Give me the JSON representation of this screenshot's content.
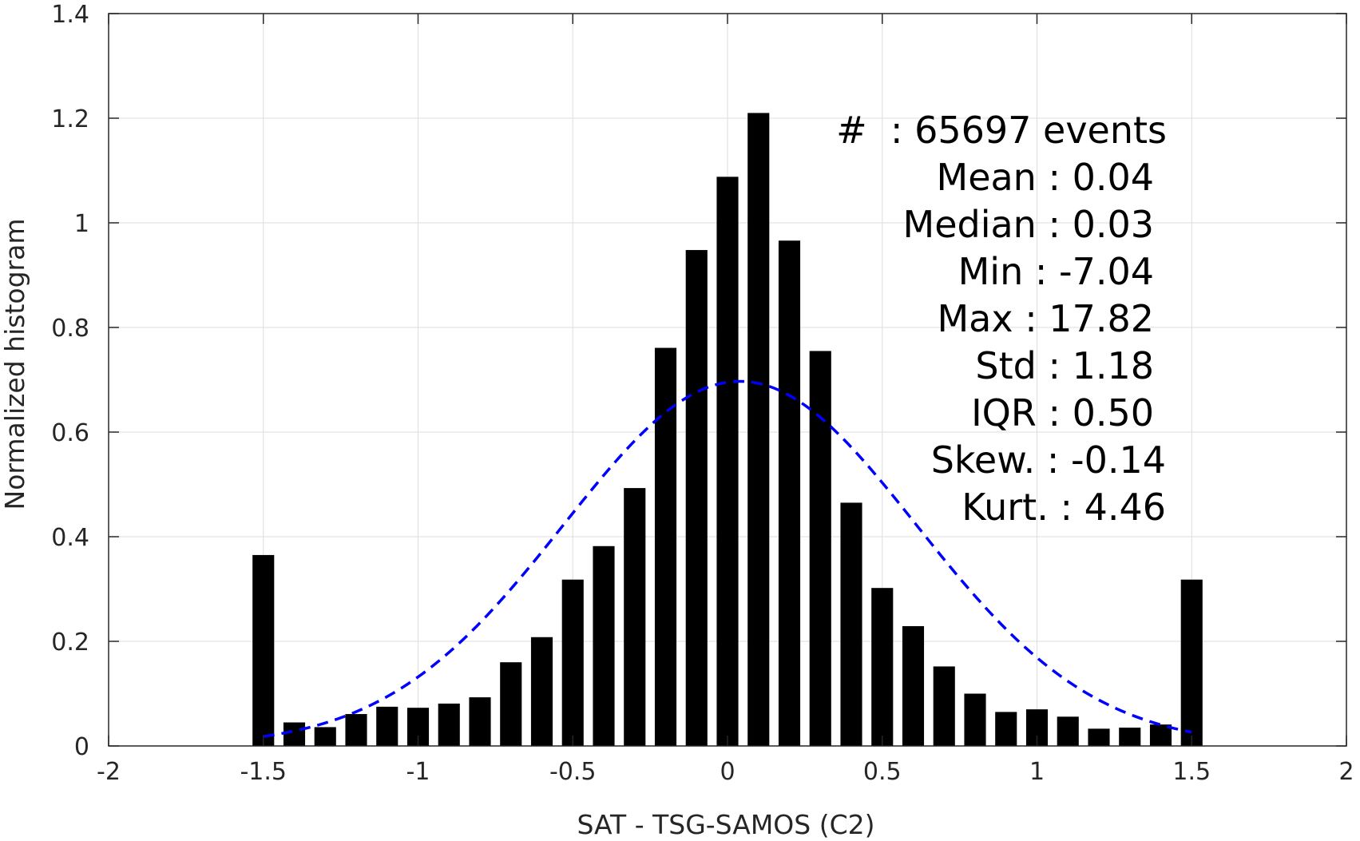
{
  "chart_data": {
    "type": "bar",
    "title": "",
    "xlabel": "SAT - TSG-SAMOS (C2)",
    "ylabel": "Normalized histogram",
    "xlim": [
      -2,
      2
    ],
    "ylim": [
      0,
      1.4
    ],
    "xticks": [
      -2,
      -1.5,
      -1,
      -0.5,
      0,
      0.5,
      1,
      1.5,
      2
    ],
    "xtick_labels": [
      "-2",
      "-1.5",
      "-1",
      "-0.5",
      "0",
      "0.5",
      "1",
      "1.5",
      "2"
    ],
    "yticks": [
      0,
      0.2,
      0.4,
      0.6,
      0.8,
      1,
      1.2,
      1.4
    ],
    "ytick_labels": [
      "0",
      "0.2",
      "0.4",
      "0.6",
      "0.8",
      "1",
      "1.2",
      "1.4"
    ],
    "grid": true,
    "bar_color": "#000000",
    "bar_width": 0.07,
    "bars": {
      "x": [
        -1.5,
        -1.4,
        -1.3,
        -1.2,
        -1.1,
        -1.0,
        -0.9,
        -0.8,
        -0.7,
        -0.6,
        -0.5,
        -0.4,
        -0.3,
        -0.2,
        -0.1,
        0.0,
        0.1,
        0.2,
        0.3,
        0.4,
        0.5,
        0.6,
        0.7,
        0.8,
        0.9,
        1.0,
        1.1,
        1.2,
        1.3,
        1.4,
        1.5
      ],
      "values": [
        0.365,
        0.045,
        0.036,
        0.061,
        0.075,
        0.073,
        0.081,
        0.093,
        0.16,
        0.208,
        0.318,
        0.382,
        0.493,
        0.761,
        0.948,
        1.088,
        1.21,
        0.966,
        0.755,
        0.465,
        0.302,
        0.229,
        0.152,
        0.1,
        0.065,
        0.07,
        0.056,
        0.033,
        0.035,
        0.041,
        0.318
      ]
    },
    "fit_curve": {
      "type": "normal",
      "style": "dashed",
      "color": "#0000ff",
      "mean": 0.04,
      "std": 0.57,
      "peak": 0.697,
      "x_range": [
        -1.5,
        1.5
      ]
    },
    "annotations": [
      {
        "label": "#  : 65697 events"
      },
      {
        "label": "Mean : 0.04"
      },
      {
        "label": "Median : 0.03"
      },
      {
        "label": "Min : -7.04"
      },
      {
        "label": "Max : 17.82"
      },
      {
        "label": "Std : 1.18"
      },
      {
        "label": "IQR : 0.50"
      },
      {
        "label": "Skew. : -0.14"
      },
      {
        "label": "Kurt. : 4.46"
      }
    ]
  }
}
